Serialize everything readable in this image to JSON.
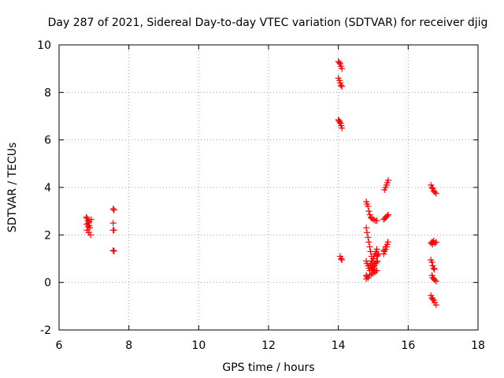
{
  "chart_data": {
    "type": "scatter",
    "title": "Day 287 of 2021, Sidereal Day-to-day VTEC variation (SDTVAR) for receiver djig",
    "xlabel": "GPS time / hours",
    "ylabel": "SDTVAR / TECUs",
    "xlim": [
      6,
      18
    ],
    "ylim": [
      -2,
      10
    ],
    "xticks": [
      "6",
      "8",
      "10",
      "12",
      "14",
      "16",
      "18"
    ],
    "yticks": [
      "-2",
      "0",
      "2",
      "4",
      "6",
      "8",
      "10"
    ],
    "grid": true,
    "marker": "+",
    "color": "#ff0000",
    "series": [
      {
        "points": [
          [
            6.78,
            2.75
          ],
          [
            6.8,
            2.7
          ],
          [
            6.82,
            2.6
          ],
          [
            6.84,
            2.5
          ],
          [
            6.86,
            2.4
          ],
          [
            6.88,
            2.3
          ],
          [
            6.8,
            2.2
          ],
          [
            6.85,
            2.1
          ],
          [
            6.9,
            2.0
          ],
          [
            6.83,
            2.35
          ],
          [
            6.86,
            2.55
          ],
          [
            6.79,
            2.45
          ],
          [
            6.92,
            2.65
          ],
          [
            7.55,
            3.1
          ],
          [
            7.57,
            3.05
          ],
          [
            7.55,
            2.5
          ],
          [
            7.55,
            2.2
          ],
          [
            7.57,
            2.2
          ],
          [
            7.55,
            1.35
          ],
          [
            7.57,
            1.32
          ],
          [
            14.0,
            9.3
          ],
          [
            14.03,
            9.25
          ],
          [
            14.05,
            9.2
          ],
          [
            14.07,
            9.1
          ],
          [
            14.1,
            9.0
          ],
          [
            14.0,
            8.6
          ],
          [
            14.03,
            8.5
          ],
          [
            14.05,
            8.4
          ],
          [
            14.07,
            8.3
          ],
          [
            14.1,
            8.25
          ],
          [
            14.0,
            6.85
          ],
          [
            14.02,
            6.8
          ],
          [
            14.04,
            6.75
          ],
          [
            14.06,
            6.7
          ],
          [
            14.08,
            6.6
          ],
          [
            14.1,
            6.5
          ],
          [
            14.05,
            1.1
          ],
          [
            14.08,
            1.0
          ],
          [
            14.1,
            0.95
          ],
          [
            14.8,
            3.4
          ],
          [
            14.82,
            3.3
          ],
          [
            14.85,
            3.2
          ],
          [
            14.87,
            3.0
          ],
          [
            14.9,
            2.85
          ],
          [
            14.93,
            2.75
          ],
          [
            14.95,
            2.7
          ],
          [
            15.0,
            2.65
          ],
          [
            15.05,
            2.6
          ],
          [
            15.1,
            2.6
          ],
          [
            14.8,
            2.3
          ],
          [
            14.82,
            2.1
          ],
          [
            14.85,
            1.9
          ],
          [
            14.87,
            1.7
          ],
          [
            14.9,
            1.5
          ],
          [
            14.92,
            1.3
          ],
          [
            14.95,
            1.1
          ],
          [
            14.97,
            0.9
          ],
          [
            15.0,
            0.7
          ],
          [
            14.8,
            0.9
          ],
          [
            14.82,
            0.8
          ],
          [
            14.85,
            0.7
          ],
          [
            14.88,
            0.6
          ],
          [
            14.9,
            0.5
          ],
          [
            14.8,
            0.3
          ],
          [
            14.82,
            0.25
          ],
          [
            14.8,
            0.15
          ],
          [
            14.85,
            0.2
          ],
          [
            14.9,
            0.3
          ],
          [
            14.95,
            0.35
          ],
          [
            15.0,
            0.4
          ],
          [
            15.05,
            0.45
          ],
          [
            15.1,
            0.5
          ],
          [
            14.95,
            0.9
          ],
          [
            15.0,
            1.0
          ],
          [
            15.02,
            1.1
          ],
          [
            15.05,
            1.2
          ],
          [
            15.08,
            1.3
          ],
          [
            15.1,
            1.4
          ],
          [
            14.97,
            0.6
          ],
          [
            15.0,
            0.65
          ],
          [
            15.03,
            0.7
          ],
          [
            15.06,
            0.8
          ],
          [
            15.09,
            0.85
          ],
          [
            15.12,
            0.9
          ],
          [
            14.92,
            0.75
          ],
          [
            14.95,
            0.55
          ],
          [
            15.02,
            0.55
          ],
          [
            15.1,
            1.1
          ],
          [
            15.12,
            1.15
          ],
          [
            15.15,
            1.2
          ],
          [
            15.3,
            1.2
          ],
          [
            15.32,
            1.3
          ],
          [
            15.35,
            1.4
          ],
          [
            15.38,
            1.5
          ],
          [
            15.4,
            1.6
          ],
          [
            15.42,
            1.7
          ],
          [
            15.3,
            1.35
          ],
          [
            15.35,
            1.5
          ],
          [
            15.3,
            2.65
          ],
          [
            15.33,
            2.7
          ],
          [
            15.36,
            2.75
          ],
          [
            15.4,
            2.8
          ],
          [
            15.43,
            2.85
          ],
          [
            15.32,
            3.9
          ],
          [
            15.35,
            4.0
          ],
          [
            15.38,
            4.1
          ],
          [
            15.4,
            4.2
          ],
          [
            15.43,
            4.3
          ],
          [
            16.65,
            4.1
          ],
          [
            16.68,
            4.0
          ],
          [
            16.7,
            3.95
          ],
          [
            16.73,
            3.85
          ],
          [
            16.76,
            3.8
          ],
          [
            16.8,
            3.75
          ],
          [
            16.65,
            1.65
          ],
          [
            16.68,
            1.7
          ],
          [
            16.7,
            1.6
          ],
          [
            16.73,
            1.75
          ],
          [
            16.76,
            1.65
          ],
          [
            16.8,
            1.7
          ],
          [
            16.7,
            1.68
          ],
          [
            16.65,
            0.95
          ],
          [
            16.68,
            0.85
          ],
          [
            16.7,
            0.7
          ],
          [
            16.73,
            0.6
          ],
          [
            16.75,
            0.55
          ],
          [
            16.68,
            0.3
          ],
          [
            16.7,
            0.2
          ],
          [
            16.73,
            0.15
          ],
          [
            16.76,
            0.1
          ],
          [
            16.8,
            0.05
          ],
          [
            16.65,
            -0.55
          ],
          [
            16.68,
            -0.65
          ],
          [
            16.7,
            -0.7
          ],
          [
            16.73,
            -0.75
          ],
          [
            16.76,
            -0.85
          ],
          [
            16.8,
            -0.95
          ]
        ]
      }
    ]
  }
}
